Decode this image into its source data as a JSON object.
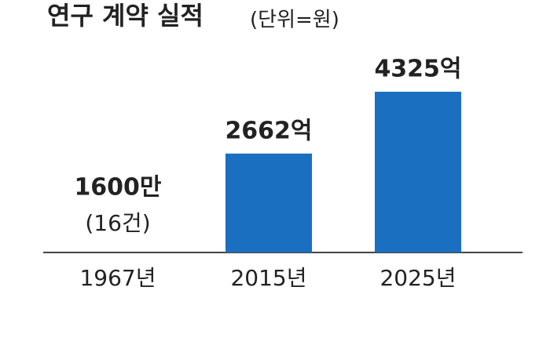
{
  "chart_data": {
    "type": "bar",
    "title": "연구 계약 실적",
    "subtitle": "(단위=원)",
    "categories": [
      "1967년",
      "2015년",
      "2025년"
    ],
    "values": [
      16000000,
      266200000000,
      432500000000
    ],
    "value_labels": [
      "1600만",
      "2662억",
      "4325억"
    ],
    "annotations": [
      "(16건)"
    ],
    "color": "#1a6fc0"
  }
}
